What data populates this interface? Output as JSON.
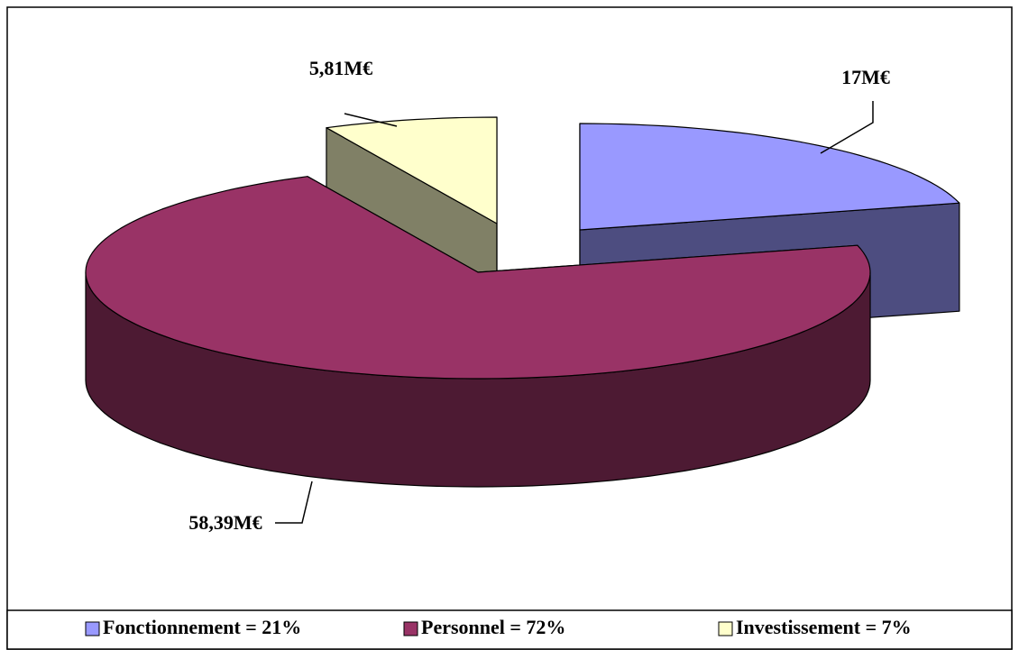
{
  "chart_data": {
    "type": "pie3d",
    "categories": [
      "Fonctionnement = 21%",
      "Personnel = 72%",
      "Investissement = 7%"
    ],
    "values": [
      17,
      58.39,
      5.81
    ],
    "value_labels": [
      "17M€",
      "58,39M€",
      "5,81M€"
    ],
    "colors": [
      "#9999ff",
      "#993366",
      "#ffffcc"
    ],
    "legend": "bottom"
  }
}
